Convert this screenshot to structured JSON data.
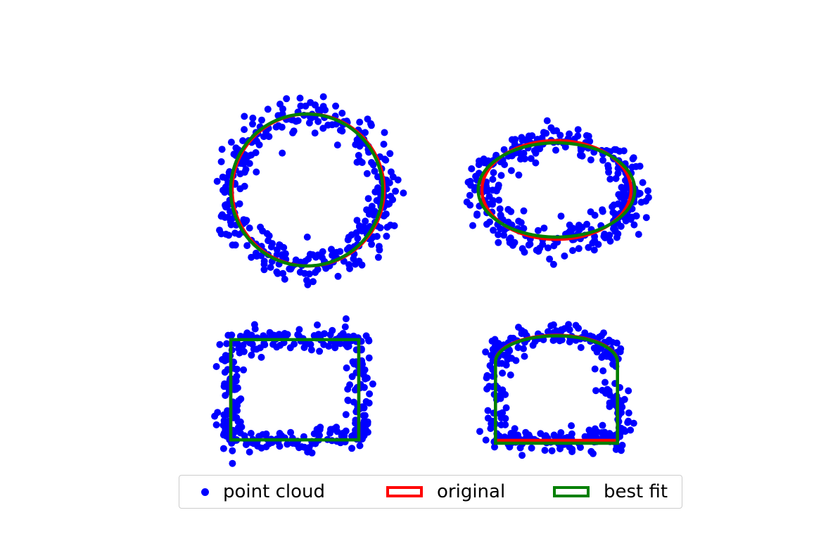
{
  "chart_data": [
    {
      "type": "scatter",
      "shape": "circle",
      "series": [
        {
          "name": "point cloud",
          "kind": "points",
          "color": "#0000ff",
          "count": 340
        },
        {
          "name": "original",
          "kind": "outline",
          "color": "#ff0000",
          "cx": 0,
          "cy": 0,
          "r": 1.0
        },
        {
          "name": "best fit",
          "kind": "outline",
          "color": "#008000",
          "cx": -0.02,
          "cy": 0.0,
          "r": 1.0
        }
      ],
      "noise": 0.12,
      "grid": false,
      "axes_visible": false
    },
    {
      "type": "scatter",
      "shape": "ellipse",
      "series": [
        {
          "name": "point cloud",
          "kind": "points",
          "color": "#0000ff",
          "count": 340
        },
        {
          "name": "original",
          "kind": "outline",
          "color": "#ff0000",
          "cx": 0,
          "cy": 0,
          "rx": 1.0,
          "ry": 0.65
        },
        {
          "name": "best fit",
          "kind": "outline",
          "color": "#008000",
          "cx": 0.0,
          "cy": 0.0,
          "rx": 1.05,
          "ry": 0.62
        }
      ],
      "noise": 0.12,
      "grid": false,
      "axes_visible": false
    },
    {
      "type": "scatter",
      "shape": "square",
      "series": [
        {
          "name": "point cloud",
          "kind": "points",
          "color": "#0000ff",
          "count": 340
        },
        {
          "name": "original",
          "kind": "outline",
          "color": "#ff0000",
          "x0": -1.0,
          "y0": -0.8,
          "x1": 1.0,
          "y1": 0.8
        },
        {
          "name": "best fit",
          "kind": "outline",
          "color": "#008000",
          "x0": -1.0,
          "y0": -0.8,
          "x1": 1.0,
          "y1": 0.8
        }
      ],
      "noise": 0.1,
      "grid": false,
      "axes_visible": false
    },
    {
      "type": "scatter",
      "shape": "tunnel",
      "series": [
        {
          "name": "point cloud",
          "kind": "points",
          "color": "#0000ff",
          "count": 340
        },
        {
          "name": "original",
          "kind": "outline",
          "color": "#ff0000",
          "half_width": 0.85,
          "wall_height": 0.7,
          "base": -0.9
        },
        {
          "name": "best fit",
          "kind": "outline",
          "color": "#008000",
          "half_width": 0.85,
          "wall_height": 0.72,
          "base": -0.95
        }
      ],
      "noise": 0.1,
      "grid": false,
      "axes_visible": false
    }
  ],
  "legend": {
    "placement": "bottom-center",
    "items": [
      {
        "label": "point cloud",
        "kind": "marker",
        "color": "#0000ff"
      },
      {
        "label": "original",
        "kind": "patch",
        "color": "#ff0000"
      },
      {
        "label": "best fit",
        "kind": "patch",
        "color": "#008000"
      }
    ]
  }
}
